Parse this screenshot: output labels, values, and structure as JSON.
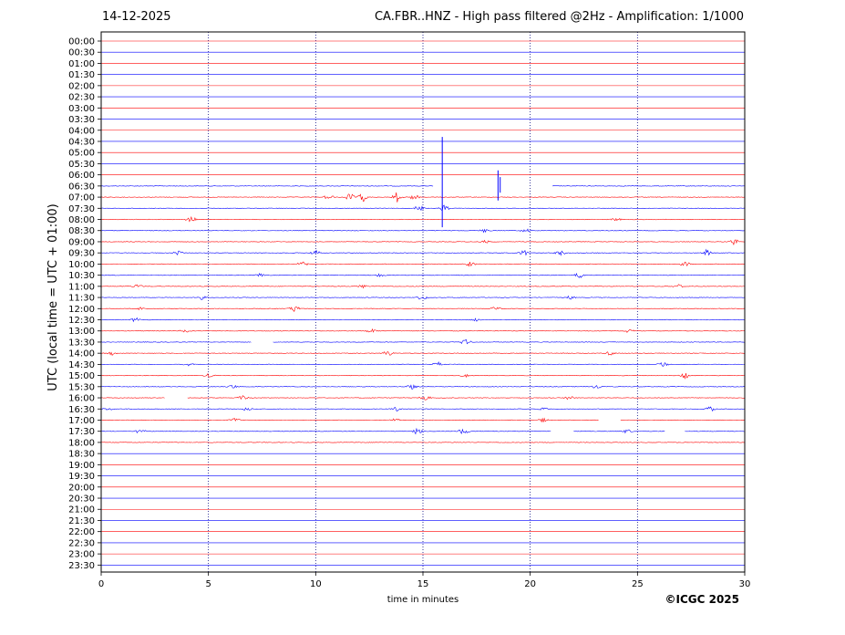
{
  "header": {
    "date": "14-12-2025",
    "title": "CA.FBR..HNZ - High pass filtered @2Hz - Amplification: 1/1000"
  },
  "footer": {
    "copyright": "©ICGC 2025"
  },
  "colors": {
    "odd_trace": "#ff0000",
    "even_trace": "#0000ff",
    "grid": "#000080",
    "axis": "#000000"
  },
  "chart_data": {
    "type": "line",
    "chart_kind": "helicorder",
    "xlabel": "time in minutes",
    "ylabel": "UTC (local time = UTC + 01:00)",
    "xlim": [
      0,
      30
    ],
    "x_ticks": [
      0,
      5,
      10,
      15,
      20,
      25,
      30
    ],
    "grid": "vertical dotted at 5, 10, 15, 20, 25",
    "row_labels": [
      "00:00",
      "00:30",
      "01:00",
      "01:30",
      "02:00",
      "02:30",
      "03:00",
      "03:30",
      "04:00",
      "04:30",
      "05:00",
      "05:30",
      "06:00",
      "06:30",
      "07:00",
      "07:30",
      "08:00",
      "08:30",
      "09:00",
      "09:30",
      "10:00",
      "10:30",
      "11:00",
      "11:30",
      "12:00",
      "12:30",
      "13:00",
      "13:30",
      "14:00",
      "14:30",
      "15:00",
      "15:30",
      "16:00",
      "16:30",
      "17:00",
      "17:30",
      "18:00",
      "18:30",
      "19:00",
      "19:30",
      "20:00",
      "20:30",
      "21:00",
      "21:30",
      "22:00",
      "22:30",
      "23:00",
      "23:30"
    ],
    "trace_colors": "alternating blue / red per row",
    "data_start_row": 13,
    "data_end_row": 36,
    "gaps": [
      {
        "row": 13,
        "from": 15.5,
        "to": 21
      },
      {
        "row": 27,
        "from": 7,
        "to": 8
      },
      {
        "row": 32,
        "from": 3,
        "to": 4
      },
      {
        "row": 34,
        "from": 23.2,
        "to": 24.2
      },
      {
        "row": 35,
        "from": 21,
        "to": 22
      },
      {
        "row": 35,
        "from": 26.3,
        "to": 27.2
      }
    ],
    "bursts": [
      {
        "row": 14,
        "x": 10.6,
        "amp": 0.25
      },
      {
        "row": 14,
        "x": 11.6,
        "amp": 0.35
      },
      {
        "row": 14,
        "x": 12.2,
        "amp": 0.4
      },
      {
        "row": 14,
        "x": 13.8,
        "amp": 0.5
      },
      {
        "row": 14,
        "x": 14.6,
        "amp": 0.3
      },
      {
        "row": 15,
        "x": 14.8,
        "amp": 0.3
      },
      {
        "row": 15,
        "x": 16,
        "amp": 0.3
      },
      {
        "row": 16,
        "x": 4.2,
        "amp": 0.25
      },
      {
        "row": 16,
        "x": 24,
        "amp": 0.25
      },
      {
        "row": 17,
        "x": 17.9,
        "amp": 0.2
      },
      {
        "row": 17,
        "x": 19.8,
        "amp": 0.2
      },
      {
        "row": 18,
        "x": 17.9,
        "amp": 0.2
      },
      {
        "row": 18,
        "x": 29.5,
        "amp": 0.25
      },
      {
        "row": 19,
        "x": 3.6,
        "amp": 0.2
      },
      {
        "row": 19,
        "x": 10,
        "amp": 0.25
      },
      {
        "row": 19,
        "x": 19.7,
        "amp": 0.25
      },
      {
        "row": 19,
        "x": 21.4,
        "amp": 0.25
      },
      {
        "row": 19,
        "x": 28.2,
        "amp": 0.3
      },
      {
        "row": 20,
        "x": 9.4,
        "amp": 0.2
      },
      {
        "row": 20,
        "x": 17.2,
        "amp": 0.25
      },
      {
        "row": 20,
        "x": 27.2,
        "amp": 0.25
      },
      {
        "row": 21,
        "x": 7.4,
        "amp": 0.2
      },
      {
        "row": 21,
        "x": 13,
        "amp": 0.15
      },
      {
        "row": 21,
        "x": 22.3,
        "amp": 0.25
      },
      {
        "row": 22,
        "x": 1.7,
        "amp": 0.2
      },
      {
        "row": 22,
        "x": 12.2,
        "amp": 0.2
      },
      {
        "row": 22,
        "x": 26.9,
        "amp": 0.2
      },
      {
        "row": 23,
        "x": 4.7,
        "amp": 0.2
      },
      {
        "row": 23,
        "x": 15,
        "amp": 0.3
      },
      {
        "row": 23,
        "x": 21.9,
        "amp": 0.2
      },
      {
        "row": 24,
        "x": 1.9,
        "amp": 0.2
      },
      {
        "row": 24,
        "x": 9.0,
        "amp": 0.3
      },
      {
        "row": 24,
        "x": 18.4,
        "amp": 0.2
      },
      {
        "row": 25,
        "x": 1.6,
        "amp": 0.2
      },
      {
        "row": 25,
        "x": 17.5,
        "amp": 0.2
      },
      {
        "row": 26,
        "x": 3.9,
        "amp": 0.2
      },
      {
        "row": 26,
        "x": 12.6,
        "amp": 0.2
      },
      {
        "row": 26,
        "x": 24.6,
        "amp": 0.2
      },
      {
        "row": 27,
        "x": 17,
        "amp": 0.25
      },
      {
        "row": 28,
        "x": 0.5,
        "amp": 0.2
      },
      {
        "row": 28,
        "x": 13.4,
        "amp": 0.25
      },
      {
        "row": 28,
        "x": 23.7,
        "amp": 0.2
      },
      {
        "row": 29,
        "x": 4.1,
        "amp": 0.2
      },
      {
        "row": 29,
        "x": 15.7,
        "amp": 0.2
      },
      {
        "row": 29,
        "x": 26.2,
        "amp": 0.25
      },
      {
        "row": 30,
        "x": 5.0,
        "amp": 0.2
      },
      {
        "row": 30,
        "x": 17,
        "amp": 0.2
      },
      {
        "row": 30,
        "x": 27.2,
        "amp": 0.3
      },
      {
        "row": 31,
        "x": 6.1,
        "amp": 0.2
      },
      {
        "row": 31,
        "x": 14.5,
        "amp": 0.25
      },
      {
        "row": 31,
        "x": 23.1,
        "amp": 0.2
      },
      {
        "row": 32,
        "x": 6.6,
        "amp": 0.2
      },
      {
        "row": 32,
        "x": 15.1,
        "amp": 0.25
      },
      {
        "row": 32,
        "x": 21.8,
        "amp": 0.2
      },
      {
        "row": 33,
        "x": 0.3,
        "amp": 0.2
      },
      {
        "row": 33,
        "x": 6.8,
        "amp": 0.2
      },
      {
        "row": 33,
        "x": 13.8,
        "amp": 0.2
      },
      {
        "row": 33,
        "x": 20.6,
        "amp": 0.2
      },
      {
        "row": 33,
        "x": 28.4,
        "amp": 0.25
      },
      {
        "row": 34,
        "x": 6.2,
        "amp": 0.2
      },
      {
        "row": 34,
        "x": 13.7,
        "amp": 0.2
      },
      {
        "row": 34,
        "x": 20.6,
        "amp": 0.2
      },
      {
        "row": 35,
        "x": 1.8,
        "amp": 0.2
      },
      {
        "row": 35,
        "x": 14.7,
        "amp": 0.35
      },
      {
        "row": 35,
        "x": 16.9,
        "amp": 0.3
      },
      {
        "row": 35,
        "x": 24.5,
        "amp": 0.2
      }
    ],
    "spikes": [
      {
        "row": 13,
        "x": 15.9,
        "up": 4.4,
        "down": 3.7
      },
      {
        "row": 13,
        "x": 18.5,
        "up": 1.4,
        "down": 1.3
      },
      {
        "row": 13,
        "x": 18.6,
        "up": 0.8,
        "down": 0.6
      }
    ]
  }
}
